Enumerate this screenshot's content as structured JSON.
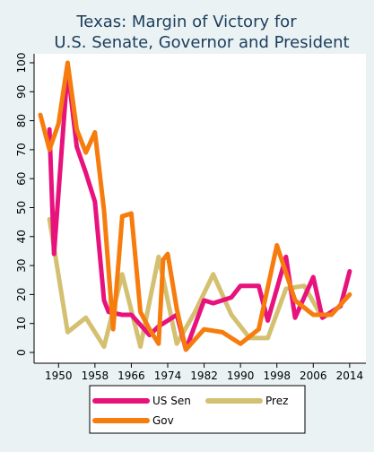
{
  "chart_data": {
    "type": "line",
    "title_lines": [
      "Texas: Margin of Victory for",
      "U.S. Senate, Governor and President"
    ],
    "xlabel": "",
    "ylabel": "",
    "xlim": [
      1946,
      2016
    ],
    "ylim": [
      0,
      100
    ],
    "x_ticks": [
      1950,
      1958,
      1966,
      1974,
      1982,
      1990,
      1998,
      2006,
      2014
    ],
    "y_ticks": [
      0,
      10,
      20,
      30,
      40,
      50,
      60,
      70,
      80,
      90,
      100
    ],
    "grid": false,
    "legend_position": "bottom",
    "legend": [
      {
        "series": 0,
        "label": "US Sen"
      },
      {
        "series": 1,
        "label": "Prez"
      },
      {
        "series": 2,
        "label": "Gov"
      }
    ],
    "series": [
      {
        "name": "US Sen",
        "color": "#e8127c",
        "points": [
          [
            1948,
            77
          ],
          [
            1949,
            34
          ],
          [
            1952,
            98
          ],
          [
            1954,
            71
          ],
          [
            1956,
            62
          ],
          [
            1958,
            52
          ],
          [
            1960,
            18
          ],
          [
            1961,
            14
          ],
          [
            1964,
            13
          ],
          [
            1966,
            13
          ],
          [
            1970,
            6
          ],
          [
            1972,
            9
          ],
          [
            1976,
            13
          ],
          [
            1978,
            1
          ],
          [
            1982,
            18
          ],
          [
            1984,
            17
          ],
          [
            1988,
            19
          ],
          [
            1990,
            23
          ],
          [
            1993,
            23
          ],
          [
            1994,
            23
          ],
          [
            1996,
            11
          ],
          [
            2000,
            33
          ],
          [
            2002,
            12
          ],
          [
            2006,
            26
          ],
          [
            2008,
            12
          ],
          [
            2012,
            16
          ],
          [
            2014,
            28
          ]
        ]
      },
      {
        "name": "Prez",
        "color": "#d4c071",
        "points": [
          [
            1948,
            46
          ],
          [
            1952,
            7
          ],
          [
            1956,
            12
          ],
          [
            1960,
            2
          ],
          [
            1964,
            27
          ],
          [
            1968,
            2
          ],
          [
            1972,
            33
          ],
          [
            1976,
            3
          ],
          [
            1980,
            14
          ],
          [
            1984,
            27
          ],
          [
            1988,
            13
          ],
          [
            1992,
            5
          ],
          [
            1996,
            5
          ],
          [
            2000,
            22
          ],
          [
            2004,
            23
          ],
          [
            2008,
            12
          ],
          [
            2012,
            16
          ]
        ]
      },
      {
        "name": "Gov",
        "color": "#f77c0e",
        "points": [
          [
            1946,
            82
          ],
          [
            1948,
            70
          ],
          [
            1950,
            79
          ],
          [
            1952,
            100
          ],
          [
            1954,
            77
          ],
          [
            1956,
            69
          ],
          [
            1958,
            76
          ],
          [
            1960,
            49
          ],
          [
            1962,
            8
          ],
          [
            1964,
            47
          ],
          [
            1966,
            48
          ],
          [
            1968,
            14
          ],
          [
            1970,
            8
          ],
          [
            1972,
            3
          ],
          [
            1973,
            32
          ],
          [
            1974,
            34
          ],
          [
            1976,
            15
          ],
          [
            1978,
            1
          ],
          [
            1982,
            8
          ],
          [
            1986,
            7
          ],
          [
            1990,
            3
          ],
          [
            1994,
            8
          ],
          [
            1998,
            37
          ],
          [
            2002,
            18
          ],
          [
            2006,
            13
          ],
          [
            2010,
            13
          ],
          [
            2014,
            20
          ]
        ]
      }
    ]
  }
}
